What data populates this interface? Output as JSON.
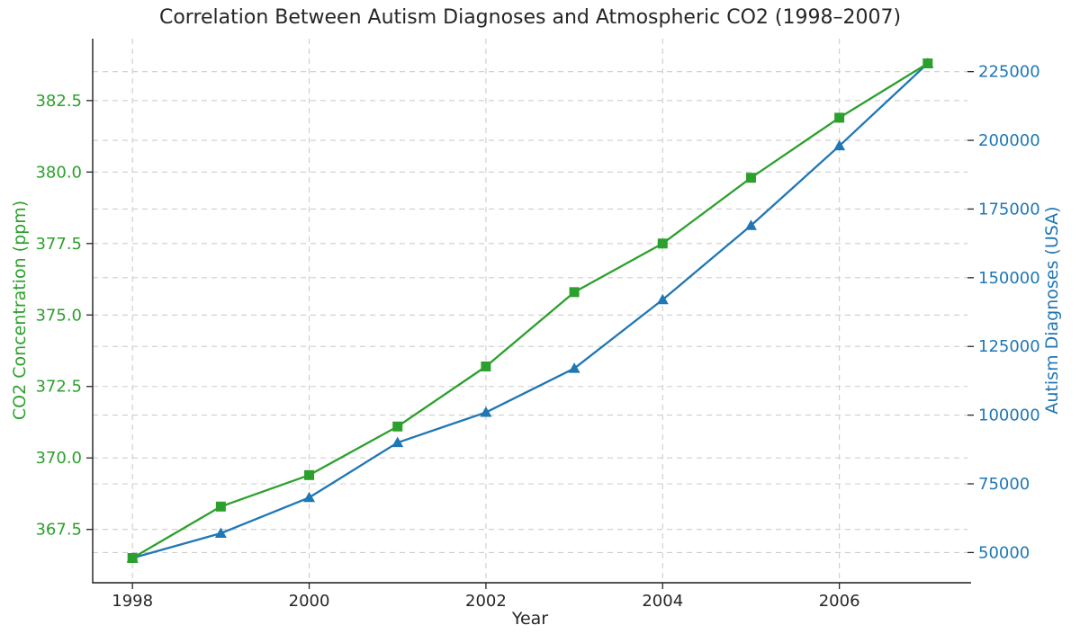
{
  "chart_data": {
    "type": "line",
    "title": "Correlation Between Autism Diagnoses and Atmospheric CO2 (1998–2007)",
    "xlabel": "Year",
    "x": [
      1998,
      1999,
      2000,
      2001,
      2002,
      2003,
      2004,
      2005,
      2006,
      2007
    ],
    "xticks": [
      1998,
      2000,
      2002,
      2004,
      2006
    ],
    "xlim": [
      1997.55,
      2007.45
    ],
    "grid": {
      "show": true,
      "style": "dashed",
      "color": "#cdcdcd"
    },
    "legend": "none",
    "axes": {
      "left": {
        "label": "CO2 Concentration (ppm)",
        "color": "#2ca02c",
        "ticks": [
          367.5,
          370.0,
          372.5,
          375.0,
          377.5,
          380.0,
          382.5
        ],
        "tick_decimals": 1,
        "lim": [
          365.635,
          384.665
        ]
      },
      "right": {
        "label": "Autism Diagnoses (USA)",
        "color": "#1f77b4",
        "ticks": [
          50000,
          75000,
          100000,
          125000,
          150000,
          175000,
          200000,
          225000
        ],
        "tick_decimals": 0,
        "lim": [
          39000,
          237000
        ]
      }
    },
    "series": [
      {
        "name": "Autism Diagnoses (USA)",
        "axis": "right",
        "color": "#1f77b4",
        "marker": "triangle-up",
        "values": [
          48000,
          57000,
          70000,
          90000,
          101000,
          117000,
          142000,
          169000,
          198000,
          228000
        ]
      },
      {
        "name": "CO2 Concentration (ppm)",
        "axis": "left",
        "color": "#2ca02c",
        "marker": "square",
        "values": [
          366.5,
          368.3,
          369.4,
          371.1,
          373.2,
          375.8,
          377.5,
          379.8,
          381.9,
          383.8
        ]
      }
    ]
  }
}
